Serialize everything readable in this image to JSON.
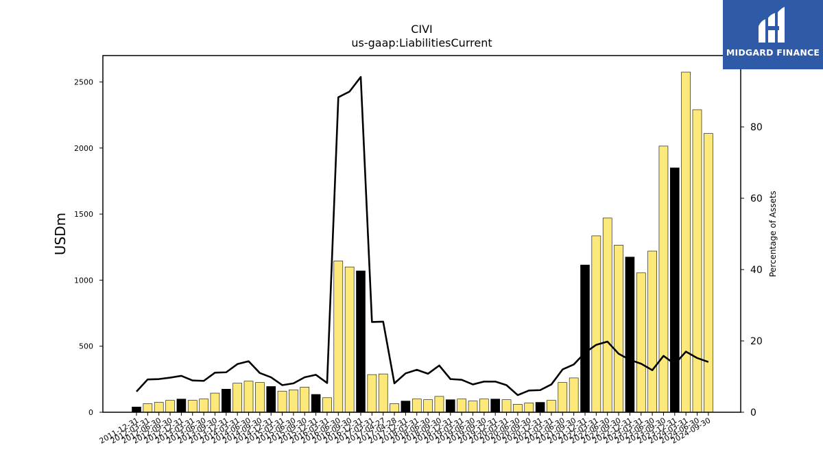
{
  "chart_data": {
    "type": "bar",
    "title": "CIVI",
    "subtitle": "us-gaap:LiabilitiesCurrent",
    "ylabel": "USDm",
    "y2label": "Percentage of Assets",
    "ylim": [
      0,
      2700
    ],
    "y2lim": [
      0,
      100
    ],
    "yticks": [
      0,
      500,
      1000,
      1500,
      2000,
      2500
    ],
    "y2ticks": [
      0,
      20,
      40,
      60,
      80
    ],
    "bar_colors": {
      "annual": "#000000",
      "quarterly": "#fde97a"
    },
    "line_color": "#000000",
    "categories": [
      "2011-12-31",
      "2012-03-31",
      "2012-06-30",
      "2012-09-30",
      "2012-12-31",
      "2013-03-31",
      "2013-06-30",
      "2013-09-30",
      "2013-12-31",
      "2014-03-31",
      "2014-06-30",
      "2014-09-30",
      "2014-12-31",
      "2015-03-31",
      "2015-06-30",
      "2015-09-30",
      "2015-12-31",
      "2016-03-31",
      "2016-06-30",
      "2016-09-30",
      "2016-12-31",
      "2017-03-31",
      "2017-04-27",
      "2017-04-28",
      "2017-12-31",
      "2018-03-31",
      "2018-06-30",
      "2018-09-30",
      "2018-12-31",
      "2019-03-31",
      "2019-06-30",
      "2019-09-30",
      "2019-12-31",
      "2020-03-31",
      "2020-06-30",
      "2020-09-30",
      "2020-12-31",
      "2021-03-31",
      "2021-06-30",
      "2021-09-30",
      "2021-12-31",
      "2022-03-31",
      "2022-06-30",
      "2022-09-30",
      "2022-12-31",
      "2023-03-31",
      "2023-06-30",
      "2023-09-30",
      "2023-12-31",
      "2024-03-31",
      "2024-06-30",
      "2024-09-30"
    ],
    "annual": [
      true,
      false,
      false,
      false,
      true,
      false,
      false,
      false,
      true,
      false,
      false,
      false,
      true,
      false,
      false,
      false,
      true,
      false,
      false,
      false,
      true,
      false,
      false,
      false,
      true,
      false,
      false,
      false,
      true,
      false,
      false,
      false,
      true,
      false,
      false,
      false,
      true,
      false,
      false,
      false,
      true,
      false,
      false,
      false,
      true,
      false,
      false,
      false,
      true,
      false,
      false,
      false
    ],
    "series": [
      {
        "name": "",
        "axis": "left",
        "values": [
          40,
          65,
          75,
          90,
          100,
          90,
          100,
          145,
          175,
          220,
          235,
          225,
          195,
          160,
          170,
          190,
          135,
          110,
          1145,
          1100,
          1070,
          285,
          290,
          65,
          85,
          100,
          95,
          120,
          95,
          100,
          85,
          100,
          100,
          95,
          60,
          70,
          75,
          90,
          225,
          260,
          1115,
          1335,
          1470,
          1265,
          1175,
          1055,
          1220,
          2015,
          1850,
          2575,
          2290,
          2110
        ]
      },
      {
        "name": "",
        "axis": "right",
        "values": [
          5.8,
          9.2,
          9.3,
          9.7,
          10.2,
          8.9,
          8.8,
          11.1,
          11.2,
          13.5,
          14.3,
          11.0,
          9.8,
          7.6,
          8.1,
          9.8,
          10.5,
          8.2,
          88.3,
          89.9,
          94.0,
          25.3,
          25.4,
          8.1,
          10.9,
          11.9,
          10.8,
          13.1,
          9.3,
          9.1,
          7.8,
          8.6,
          8.6,
          7.6,
          4.8,
          6.1,
          6.2,
          7.8,
          12.0,
          13.4,
          16.7,
          18.9,
          19.8,
          16.4,
          14.7,
          13.6,
          11.8,
          15.8,
          13.5,
          17.0,
          15.2,
          14.1
        ]
      }
    ]
  },
  "logo": {
    "text": "MIDGARD FINANCE"
  }
}
